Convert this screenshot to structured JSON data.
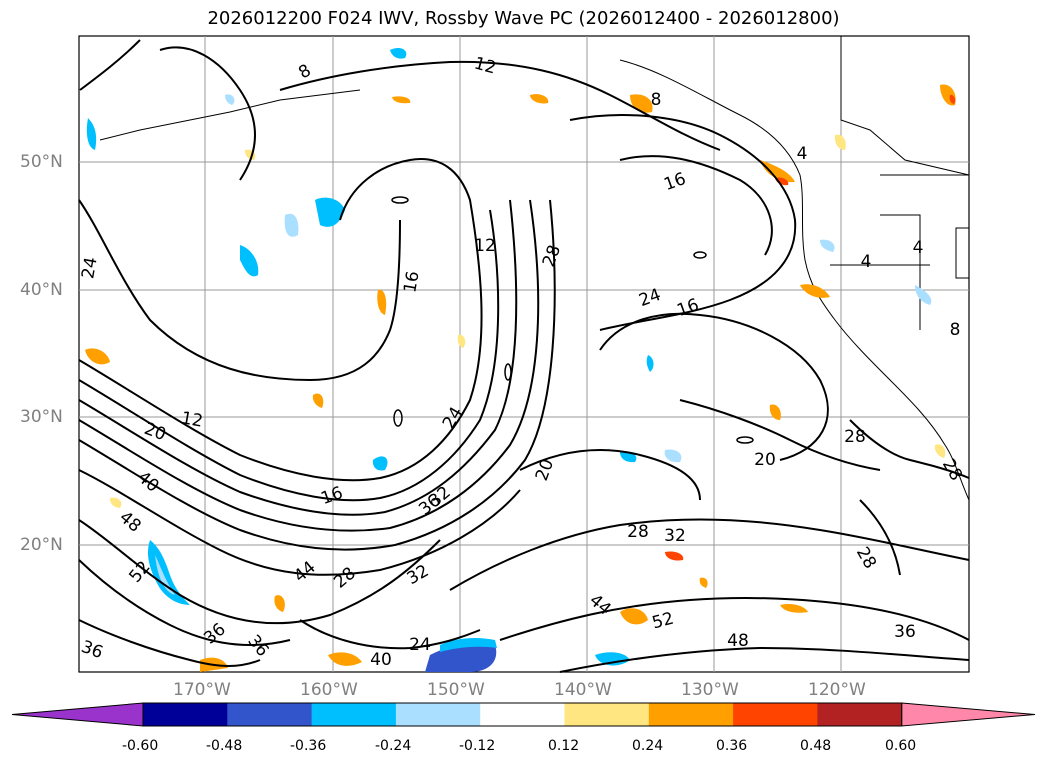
{
  "title": "2026012200 F024 IWV, Rossby Wave PC (2026012400 - 2026012800)",
  "map": {
    "region": "North Pacific",
    "lat_labels": [
      "50°N",
      "40°N",
      "30°N",
      "20°N"
    ],
    "lon_labels": [
      "170°W",
      "160°W",
      "150°W",
      "140°W",
      "130°W",
      "120°W"
    ],
    "contour_labels": [
      "8",
      "12",
      "8",
      "4",
      "4",
      "4",
      "8",
      "16",
      "12",
      "28",
      "16",
      "24",
      "24",
      "16",
      "20",
      "12",
      "20",
      "28",
      "20",
      "40",
      "48",
      "24",
      "16",
      "36",
      "32",
      "28",
      "32",
      "52",
      "44",
      "28",
      "32",
      "36",
      "36",
      "36",
      "28",
      "24",
      "40",
      "44",
      "52",
      "48",
      "36",
      "28"
    ]
  },
  "colorbar": {
    "ticks": [
      "-0.60",
      "-0.48",
      "-0.36",
      "-0.24",
      "-0.12",
      "0.12",
      "0.24",
      "0.36",
      "0.48",
      "0.60"
    ],
    "colors": [
      "#9933cc",
      "#000099",
      "#3355cc",
      "#00bfff",
      "#aadfff",
      "#ffffff",
      "#ffe680",
      "#ffa000",
      "#ff4400",
      "#b22222",
      "#ff88aa"
    ]
  }
}
